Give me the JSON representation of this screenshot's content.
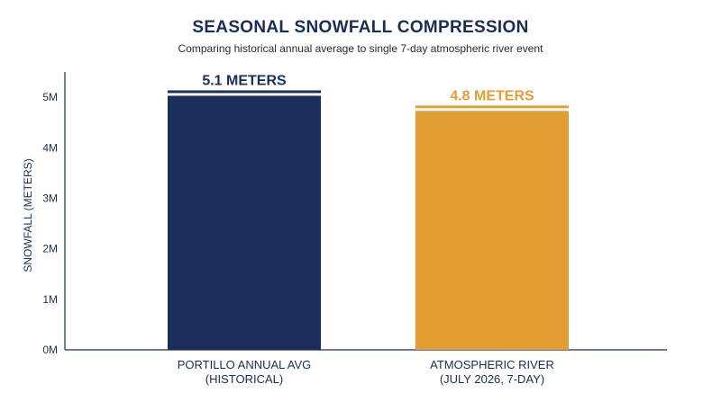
{
  "chart_data": {
    "type": "bar",
    "title": "SEASONAL SNOWFALL COMPRESSION",
    "subtitle": "Comparing historical annual average to single 7-day atmospheric river event",
    "ylabel": "SNOWFALL (METERS)",
    "xlabel": "",
    "ylim": [
      0,
      5.5
    ],
    "yticks": [
      {
        "value": 0,
        "label": "0M"
      },
      {
        "value": 1,
        "label": "1M"
      },
      {
        "value": 2,
        "label": "2M"
      },
      {
        "value": 3,
        "label": "3M"
      },
      {
        "value": 4,
        "label": "4M"
      },
      {
        "value": 5,
        "label": "5M"
      }
    ],
    "categories": [
      {
        "line1": "PORTILLO ANNUAL AVG",
        "line2": "(HISTORICAL)"
      },
      {
        "line1": "ATMOSPHERIC RIVER",
        "line2": "(JULY 2026, 7-DAY)"
      }
    ],
    "values": [
      5.1,
      4.8
    ],
    "value_labels": [
      "5.1 METERS",
      "4.8 METERS"
    ],
    "colors": [
      "#1b2d5b",
      "#e39d35"
    ],
    "label_colors": [
      "#1b2d5b",
      "#e39d35"
    ],
    "grid": false,
    "legend": "none"
  }
}
